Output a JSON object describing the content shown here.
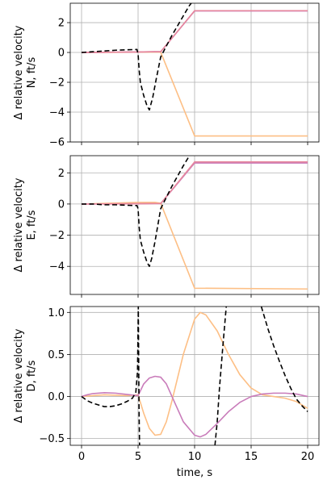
{
  "chart_data": [
    {
      "type": "line",
      "ylabel_lines": [
        "Δ relative velocity",
        "N, ft/s"
      ],
      "xlabel": "",
      "xlim": [
        -1,
        21
      ],
      "ylim": [
        -6,
        3.3
      ],
      "xticks": [
        0,
        5,
        10,
        15,
        20
      ],
      "yticks": [
        -6,
        -4,
        -2,
        0,
        2
      ],
      "show_xtick_labels": false,
      "grid": true,
      "series": [
        {
          "color": "#fdbf85",
          "style": "solid",
          "x": [
            0,
            5,
            6.5,
            7,
            10,
            20
          ],
          "y": [
            0,
            0.02,
            0.03,
            0.02,
            -5.6,
            -5.6
          ]
        },
        {
          "color": "#c97cba",
          "style": "solid",
          "x": [
            0,
            5,
            6.5,
            7,
            10,
            20
          ],
          "y": [
            0,
            0.03,
            0.05,
            0.05,
            2.78,
            2.78
          ]
        },
        {
          "color": "#e6869c",
          "style": "solid",
          "x": [
            0,
            5,
            6.5,
            7,
            10,
            20
          ],
          "y": [
            0,
            0.03,
            0.05,
            0.05,
            2.8,
            2.8
          ]
        },
        {
          "color": "#000000",
          "style": "dashed",
          "x": [
            0,
            1,
            2,
            3,
            4,
            4.9,
            5.0,
            5.1,
            5.2,
            5.5,
            5.8,
            6.0,
            6.3,
            6.6,
            7.0,
            8.0,
            9.0,
            9.5,
            10.0
          ],
          "y": [
            0,
            0.05,
            0.1,
            0.15,
            0.18,
            0.2,
            -0.1,
            -1.2,
            -2.0,
            -2.9,
            -3.6,
            -3.85,
            -3.0,
            -1.8,
            -0.3,
            1.15,
            2.45,
            3.1,
            3.6
          ]
        }
      ]
    },
    {
      "type": "line",
      "ylabel_lines": [
        "Δ relative velocity",
        "E, ft/s"
      ],
      "xlabel": "",
      "xlim": [
        -1,
        21
      ],
      "ylim": [
        -5.8,
        3.1
      ],
      "xticks": [
        0,
        5,
        10,
        15,
        20
      ],
      "yticks": [
        -4,
        -2,
        0,
        2
      ],
      "show_xtick_labels": false,
      "grid": true,
      "series": [
        {
          "color": "#fdbf85",
          "style": "solid",
          "x": [
            0,
            5,
            6.5,
            7,
            10,
            20
          ],
          "y": [
            0,
            0.1,
            0.1,
            0.05,
            -5.4,
            -5.45
          ]
        },
        {
          "color": "#c97cba",
          "style": "solid",
          "x": [
            0,
            5,
            6.5,
            7,
            10,
            20
          ],
          "y": [
            0,
            0.02,
            0.03,
            0.03,
            2.63,
            2.63
          ]
        },
        {
          "color": "#e6869c",
          "style": "solid",
          "x": [
            0,
            5,
            6.5,
            7,
            10,
            20
          ],
          "y": [
            0,
            0.02,
            0.03,
            0.03,
            2.7,
            2.7
          ]
        },
        {
          "color": "#000000",
          "style": "dashed",
          "x": [
            0,
            1,
            2,
            3,
            4,
            4.9,
            5.0,
            5.1,
            5.2,
            5.5,
            5.8,
            6.0,
            6.2,
            6.5,
            7.0,
            8.0,
            9.0,
            9.5,
            10.0
          ],
          "y": [
            0,
            0.0,
            -0.05,
            -0.05,
            -0.08,
            -0.1,
            -0.3,
            -1.5,
            -2.3,
            -3.1,
            -3.75,
            -4.0,
            -3.5,
            -2.4,
            -0.3,
            1.15,
            2.45,
            3.05,
            3.6
          ]
        }
      ]
    },
    {
      "type": "line",
      "ylabel_lines": [
        "Δ relative velocity",
        "D, ft/s"
      ],
      "xlabel": "time, s",
      "xlim": [
        -1,
        21
      ],
      "ylim": [
        -0.58,
        1.07
      ],
      "xticks": [
        0,
        5,
        10,
        15,
        20
      ],
      "yticks": [
        -0.5,
        0.0,
        0.5,
        1.0
      ],
      "ytick_labels": [
        "−0.5",
        "0.0",
        "0.5",
        "1.0"
      ],
      "show_xtick_labels": true,
      "grid": true,
      "series": [
        {
          "color": "#fdbf85",
          "style": "solid",
          "x": [
            0,
            1,
            2,
            3,
            4,
            5,
            5.5,
            6,
            6.5,
            7,
            7.5,
            8,
            9,
            10,
            10.5,
            11,
            12,
            13,
            14,
            15,
            16,
            17,
            18,
            19,
            20
          ],
          "y": [
            0,
            0.01,
            0.02,
            0.015,
            0.01,
            0.02,
            -0.2,
            -0.38,
            -0.46,
            -0.45,
            -0.3,
            -0.05,
            0.5,
            0.92,
            1.0,
            0.97,
            0.78,
            0.5,
            0.26,
            0.1,
            0.02,
            0.0,
            -0.02,
            -0.06,
            -0.14
          ]
        },
        {
          "color": "#c97cba",
          "style": "solid",
          "x": [
            0,
            0.5,
            1,
            2,
            3,
            4,
            5,
            5.5,
            6,
            6.5,
            7,
            7.5,
            8,
            9,
            10,
            10.5,
            11,
            12,
            13,
            14,
            15,
            16,
            17,
            18,
            19,
            20
          ],
          "y": [
            0,
            0.02,
            0.035,
            0.045,
            0.04,
            0.025,
            0.01,
            0.15,
            0.22,
            0.24,
            0.23,
            0.15,
            0.0,
            -0.3,
            -0.46,
            -0.48,
            -0.45,
            -0.32,
            -0.18,
            -0.07,
            0.0,
            0.03,
            0.04,
            0.04,
            0.03,
            0.0
          ]
        },
        {
          "color": "#000000",
          "style": "dashed",
          "x": [
            0,
            0.5,
            1,
            1.5,
            2,
            2.5,
            3,
            3.5,
            4,
            4.5,
            4.8,
            4.95,
            5.02,
            5.08,
            5.13
          ],
          "y": [
            0,
            -0.05,
            -0.08,
            -0.1,
            -0.12,
            -0.12,
            -0.11,
            -0.09,
            -0.06,
            -0.02,
            0.05,
            0.3,
            1.07,
            -0.1,
            -0.58
          ]
        },
        {
          "color": "#000000",
          "style": "dashed",
          "x": [
            11.8,
            12.0,
            12.2,
            12.5,
            12.8
          ],
          "y": [
            -0.58,
            -0.3,
            0.1,
            0.6,
            1.07
          ]
        },
        {
          "color": "#000000",
          "style": "dashed",
          "x": [
            15.9,
            16.5,
            17,
            17.5,
            18,
            18.5,
            19,
            19.5,
            20
          ],
          "y": [
            1.07,
            0.8,
            0.6,
            0.42,
            0.25,
            0.1,
            -0.03,
            -0.11,
            -0.18
          ]
        }
      ]
    }
  ]
}
